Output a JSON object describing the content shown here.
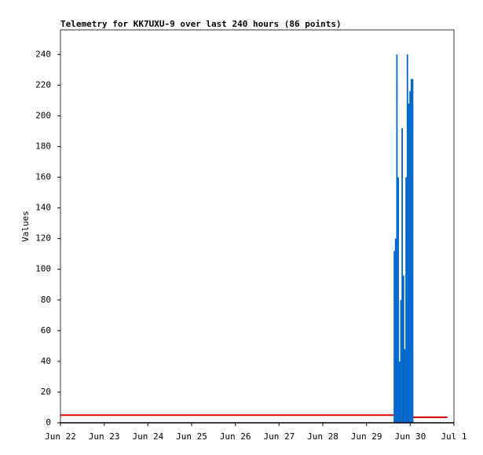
{
  "chart_data": {
    "type": "bar",
    "title": "Telemetry for KK7UXU-9 over last 240 hours (86 points)",
    "y_label": "Values",
    "xlim": [
      0,
      9
    ],
    "xticks": [
      {
        "value": 0,
        "label": "Jun 22"
      },
      {
        "value": 1,
        "label": "Jun 23"
      },
      {
        "value": 2,
        "label": "Jun 24"
      },
      {
        "value": 3,
        "label": "Jun 25"
      },
      {
        "value": 4,
        "label": "Jun 26"
      },
      {
        "value": 5,
        "label": "Jun 27"
      },
      {
        "value": 6,
        "label": "Jun 28"
      },
      {
        "value": 7,
        "label": "Jun 29"
      },
      {
        "value": 8,
        "label": "Jun 30"
      },
      {
        "value": 9,
        "label": "Jul 1"
      }
    ],
    "ylim": [
      0,
      256
    ],
    "yticks": [
      0,
      20,
      40,
      60,
      80,
      100,
      120,
      140,
      160,
      180,
      200,
      220,
      240
    ],
    "series": [
      {
        "color": "#0066cc",
        "x": [
          7.62,
          7.65,
          7.68,
          7.71,
          7.74,
          7.77,
          7.8,
          7.83,
          7.86,
          7.89,
          7.92,
          7.95,
          7.98,
          8.01,
          8.04
        ],
        "values": [
          112,
          120,
          240,
          160,
          40,
          80,
          192,
          96,
          48,
          160,
          240,
          208,
          216,
          224,
          224
        ]
      },
      {
        "type": "line",
        "color": "#dd0000",
        "x": [
          0,
          7.62,
          7.85,
          8.07,
          8.85
        ],
        "values": [
          5,
          5,
          null,
          3.6,
          3.6
        ]
      }
    ]
  }
}
